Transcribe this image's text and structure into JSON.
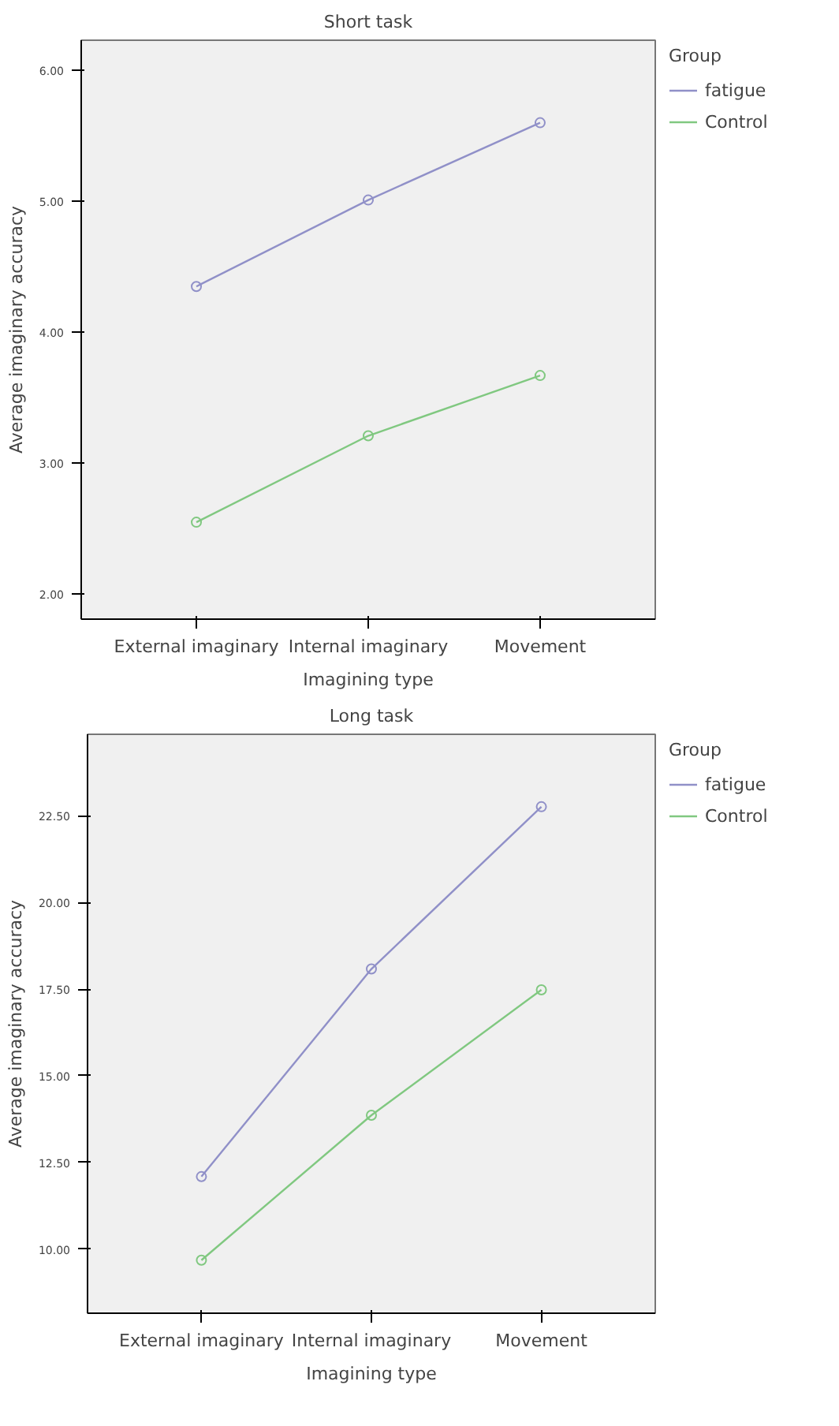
{
  "chart_data": [
    {
      "type": "line",
      "title": "Short task",
      "xlabel": "Imagining type",
      "ylabel": "Average imaginary accuracy",
      "legend_title": "Group",
      "legend": "top right",
      "marker": "circle",
      "grid": false,
      "categories": [
        "External imaginary",
        "Internal imaginary",
        "Movement"
      ],
      "ylim": [
        1.81,
        6.23
      ],
      "yticks": [
        {
          "value": 2,
          "label": "2.00"
        },
        {
          "value": 3,
          "label": "3.00"
        },
        {
          "value": 4,
          "label": "4.00"
        },
        {
          "value": 5,
          "label": "5.00"
        },
        {
          "value": 6,
          "label": "6.00"
        }
      ],
      "series": [
        {
          "name": "fatigue",
          "color": "#9090c8",
          "values": [
            4.35,
            5.01,
            5.6
          ]
        },
        {
          "name": "Control",
          "color": "#80c880",
          "values": [
            2.55,
            3.21,
            3.67
          ]
        }
      ]
    },
    {
      "type": "line",
      "title": "Long task",
      "xlabel": "Imagining type",
      "ylabel": "Average imaginary accuracy",
      "legend_title": "Group",
      "legend": "top right",
      "marker": "circle",
      "grid": false,
      "categories": [
        "External imaginary",
        "Internal imaginary",
        "Movement"
      ],
      "ylim": [
        8.15,
        24.85
      ],
      "yticks": [
        {
          "value": 10,
          "label": "10.00"
        },
        {
          "value": 12.5,
          "label": "12.50"
        },
        {
          "value": 15,
          "label": "15.00"
        },
        {
          "value": 17.5,
          "label": "17.50"
        },
        {
          "value": 20,
          "label": "20.00"
        },
        {
          "value": 22.5,
          "label": "22.50"
        }
      ],
      "series": [
        {
          "name": "fatigue",
          "color": "#9090c8",
          "values": [
            12.09,
            18.08,
            22.76
          ]
        },
        {
          "name": "Control",
          "color": "#80c880",
          "values": [
            9.68,
            13.86,
            17.48
          ]
        }
      ]
    }
  ]
}
